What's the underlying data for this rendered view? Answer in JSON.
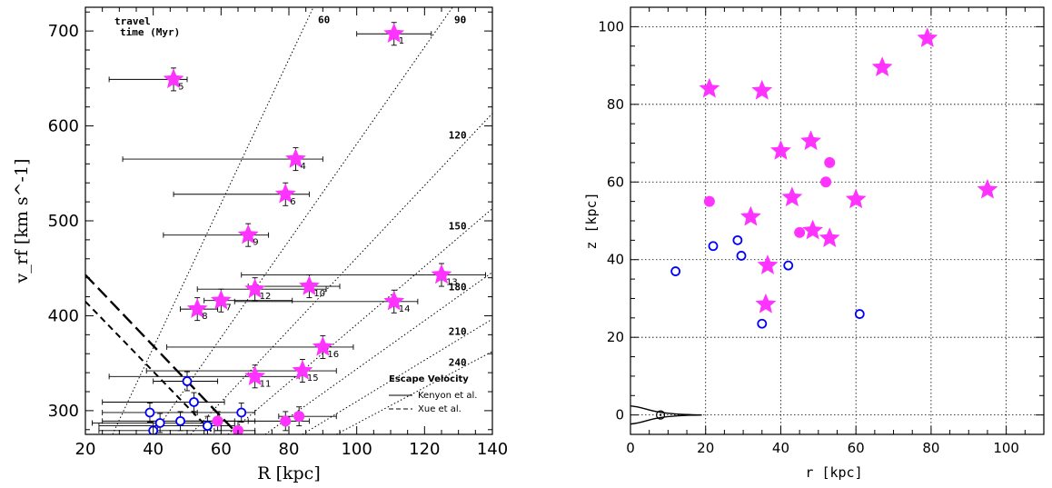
{
  "colors": {
    "accent": "#ff33ff",
    "open_circle": "#0000ff"
  },
  "chart_data": [
    {
      "type": "scatter",
      "xlabel": "R [kpc]",
      "ylabel": "v_rf [km s^-1]",
      "xlim": [
        20,
        140
      ],
      "ylim": [
        275,
        725
      ],
      "xticks": [
        "20",
        "40",
        "60",
        "80",
        "100",
        "120",
        "140"
      ],
      "yticks": [
        "300",
        "400",
        "500",
        "600",
        "700"
      ],
      "travel_time_label": [
        "travel",
        "time (Myr)"
      ],
      "travel_times": [
        {
          "label": "60",
          "x": 28,
          "slope": 7.6
        },
        {
          "label": "90",
          "x": 40,
          "slope": 5.1
        },
        {
          "label": "120",
          "x": 51,
          "slope": 3.8
        },
        {
          "label": "150",
          "x": 62,
          "slope": 3.05
        },
        {
          "label": "180",
          "x": 73,
          "slope": 2.55
        },
        {
          "label": "210",
          "x": 84,
          "slope": 2.17
        },
        {
          "label": "240",
          "x": 94,
          "slope": 1.9
        }
      ],
      "series": [
        {
          "marker": "star",
          "points": [
            {
              "x": 111,
              "y": 697,
              "xerr": [
                100,
                122
              ],
              "yerr": 12,
              "label": "1"
            },
            {
              "x": 46,
              "y": 649,
              "xerr": [
                27,
                50
              ],
              "yerr": 12,
              "label": "5"
            },
            {
              "x": 82,
              "y": 565,
              "xerr": [
                31,
                90
              ],
              "yerr": 12,
              "label": "4"
            },
            {
              "x": 79,
              "y": 528,
              "xerr": [
                46,
                86
              ],
              "yerr": 12,
              "label": "6"
            },
            {
              "x": 68,
              "y": 485,
              "xerr": [
                43,
                74
              ],
              "yerr": 12,
              "label": "9"
            },
            {
              "x": 125,
              "y": 443,
              "xerr": [
                66,
                138
              ],
              "yerr": 12,
              "label": "13"
            },
            {
              "x": 70,
              "y": 428,
              "xerr": [
                53,
                91
              ],
              "yerr": 12,
              "label": "12"
            },
            {
              "x": 86,
              "y": 431,
              "xerr": [
                68,
                95
              ],
              "yerr": 12,
              "label": "10"
            },
            {
              "x": 111,
              "y": 415,
              "xerr": [
                64,
                118
              ],
              "yerr": 12,
              "label": "14"
            },
            {
              "x": 60,
              "y": 416,
              "xerr": [
                55,
                81
              ],
              "yerr": 12,
              "label": "7"
            },
            {
              "x": 53,
              "y": 407,
              "xerr": [
                48,
                59
              ],
              "yerr": 12,
              "label": "8"
            },
            {
              "x": 90,
              "y": 367,
              "xerr": [
                44,
                99
              ],
              "yerr": 12,
              "label": "16"
            },
            {
              "x": 70,
              "y": 336,
              "xerr": [
                27,
                83
              ],
              "yerr": 12,
              "label": "11"
            },
            {
              "x": 84,
              "y": 342,
              "xerr": [
                38,
                94
              ],
              "yerr": 12,
              "label": "15"
            }
          ]
        },
        {
          "marker": "open-circle",
          "points": [
            {
              "x": 50,
              "y": 331,
              "xerr": [
                40,
                59
              ],
              "yerr": 10
            },
            {
              "x": 52,
              "y": 309,
              "xerr": [
                25,
                61
              ],
              "yerr": 10
            },
            {
              "x": 39,
              "y": 298,
              "xerr": [
                25,
                53
              ],
              "yerr": 10
            },
            {
              "x": 42,
              "y": 287,
              "xerr": [
                22,
                60
              ],
              "yerr": 10
            },
            {
              "x": 48,
              "y": 289,
              "xerr": [
                25,
                70
              ],
              "yerr": 10
            },
            {
              "x": 56,
              "y": 284,
              "xerr": [
                24,
                64
              ],
              "yerr": 10
            },
            {
              "x": 40,
              "y": 279,
              "xerr": [
                24,
                56
              ],
              "yerr": 10
            },
            {
              "x": 66,
              "y": 298,
              "xerr": [
                52,
                70
              ],
              "yerr": 10
            }
          ]
        },
        {
          "marker": "filled-circle",
          "points": [
            {
              "x": 59,
              "y": 289,
              "xerr": [
                49,
                64
              ],
              "yerr": 10
            },
            {
              "x": 79,
              "y": 289,
              "xerr": [
                68,
                86
              ],
              "yerr": 10
            },
            {
              "x": 83,
              "y": 294,
              "xerr": [
                77,
                94
              ],
              "yerr": 10
            },
            {
              "x": 65,
              "y": 279,
              "xerr": [
                58,
                70
              ],
              "yerr": 10
            }
          ]
        }
      ],
      "escape_velocity": {
        "title": "Escape Velocity",
        "kenyon": {
          "name": "Kenyon et al.",
          "x": [
            20,
            65
          ],
          "y": [
            443,
            275
          ]
        },
        "xue": {
          "name": "Xue et al.",
          "x": [
            20,
            58
          ],
          "y": [
            415,
            275
          ]
        }
      }
    },
    {
      "type": "scatter",
      "xlabel": "r [kpc]",
      "ylabel": "z [kpc]",
      "xlim": [
        0,
        110
      ],
      "ylim": [
        -5,
        105
      ],
      "xticks": [
        "0",
        "20",
        "40",
        "60",
        "80",
        "100"
      ],
      "yticks": [
        "0",
        "20",
        "40",
        "60",
        "80",
        "100"
      ],
      "grid": true,
      "series": [
        {
          "marker": "star",
          "points": [
            {
              "x": 21,
              "y": 84
            },
            {
              "x": 35,
              "y": 83.5
            },
            {
              "x": 79,
              "y": 97
            },
            {
              "x": 67,
              "y": 89.5
            },
            {
              "x": 48,
              "y": 70.5
            },
            {
              "x": 40,
              "y": 68
            },
            {
              "x": 43,
              "y": 56
            },
            {
              "x": 60,
              "y": 55.5
            },
            {
              "x": 95,
              "y": 58
            },
            {
              "x": 32,
              "y": 51
            },
            {
              "x": 48.5,
              "y": 47.5
            },
            {
              "x": 53,
              "y": 45.5
            },
            {
              "x": 36.5,
              "y": 38.5
            },
            {
              "x": 36,
              "y": 28.5
            }
          ]
        },
        {
          "marker": "filled-circle",
          "points": [
            {
              "x": 21,
              "y": 55
            },
            {
              "x": 53,
              "y": 65
            },
            {
              "x": 52,
              "y": 60
            },
            {
              "x": 45,
              "y": 47
            }
          ]
        },
        {
          "marker": "open-circle",
          "points": [
            {
              "x": 22,
              "y": 43.5
            },
            {
              "x": 28.5,
              "y": 45
            },
            {
              "x": 29.5,
              "y": 41
            },
            {
              "x": 12,
              "y": 37
            },
            {
              "x": 42,
              "y": 38.5
            },
            {
              "x": 35,
              "y": 23.5
            },
            {
              "x": 61,
              "y": 26
            }
          ]
        }
      ],
      "galaxy": {
        "sun_x": 8
      }
    }
  ]
}
